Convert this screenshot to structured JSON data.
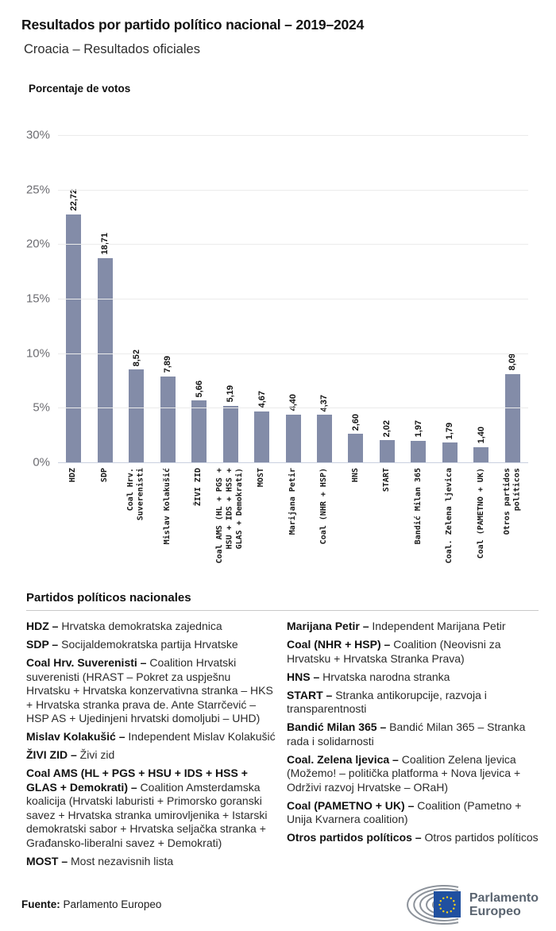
{
  "header": {
    "title": "Resultados por partido político nacional – 2019–2024",
    "subtitle": "Croacia – Resultados oficiales"
  },
  "chart": {
    "heading": "Porcentaje de votos"
  },
  "chart_data": {
    "type": "bar",
    "title": "Porcentaje de votos",
    "xlabel": "",
    "ylabel": "Porcentaje de votos",
    "categories": [
      "HDZ",
      "SDP",
      "Coal Hrv.\nSuverenisti",
      "Mislav Kolakušić",
      "ŽIVI ZID",
      "Coal AMS (HL + PGS +\nHSU + IDS + HSS +\nGLAS + Demokrati)",
      "MOST",
      "Marijana Petir",
      "Coal (NHR + HSP)",
      "HNS",
      "START",
      "Bandić Milan 365",
      "Coal. Zelena ljevica",
      "Coal (PAMETNO + UK)",
      "Otros partidos\npolíticos"
    ],
    "values": [
      22.72,
      18.71,
      8.52,
      7.89,
      5.66,
      5.19,
      4.67,
      4.4,
      4.37,
      2.6,
      2.02,
      1.97,
      1.79,
      1.4,
      8.09
    ],
    "value_labels": [
      "22,72",
      "18,71",
      "8,52",
      "7,89",
      "5,66",
      "5,19",
      "4,67",
      "4,40",
      "4,37",
      "2,60",
      "2,02",
      "1,97",
      "1,79",
      "1,40",
      "8,09"
    ],
    "ylim": [
      0,
      30
    ],
    "yticks": [
      "0%",
      "5%",
      "10%",
      "15%",
      "20%",
      "25%",
      "30%"
    ],
    "grid": true,
    "legend_position": "none",
    "bar_color": "#838CA8",
    "gridline_color": "#ebebeb",
    "axis_line_color": "#c9d0df"
  },
  "legend": {
    "heading": "Partidos políticos nacionales",
    "left": [
      {
        "name": "HDZ –",
        "desc": "Hrvatska demokratska zajednica"
      },
      {
        "name": "SDP –",
        "desc": "Socijaldemokratska partija Hrvatske"
      },
      {
        "name": "Coal Hrv. Suverenisti –",
        "desc": "Coalition Hrvatski suverenisti (HRAST – Pokret za uspješnu Hrvatsku + Hrvatska konzervativna stranka – HKS + Hrvatska stranka prava de. Ante Starrčević – HSP AS + Ujedinjeni hrvatski domoljubi – UHD)"
      },
      {
        "name": "Mislav Kolakušić –",
        "desc": "Independent Mislav Kolakušić"
      },
      {
        "name": "ŽIVI ZID –",
        "desc": "Živi zid"
      },
      {
        "name": "Coal AMS (HL + PGS + HSU + IDS + HSS + GLAS + Demokrati) –",
        "desc": "Coalition Amsterdamska koalicija (Hrvatski laburisti + Primorsko goranski savez + Hrvatska stranka umirovljenika + Istarski demokratski sabor + Hrvatska seljačka stranka + Građansko-liberalni savez + Demokrati)"
      },
      {
        "name": "MOST –",
        "desc": "Most nezavisnih lista"
      }
    ],
    "right": [
      {
        "name": "Marijana Petir –",
        "desc": "Independent Marijana Petir"
      },
      {
        "name": "Coal (NHR + HSP) –",
        "desc": "Coalition (Neovisni za Hrvatsku + Hrvatska Stranka Prava)"
      },
      {
        "name": "HNS –",
        "desc": "Hrvatska narodna stranka"
      },
      {
        "name": "START –",
        "desc": "Stranka antikorupcije, razvoja i transparentnosti"
      },
      {
        "name": "Bandić Milan 365 –",
        "desc": "Bandić Milan 365 – Stranka rada i solidarnosti"
      },
      {
        "name": "Coal. Zelena ljevica –",
        "desc": "Coalition Zelena ljevica (Možemo! – politička platforma + Nova ljevica + Održivi razvoj Hrvatske – ORaH)"
      },
      {
        "name": "Coal (PAMETNO + UK) –",
        "desc": "Coalition (Pametno + Unija Kvarnera coalition)"
      },
      {
        "name": "Otros partidos políticos –",
        "desc": "Otros partidos políticos"
      }
    ]
  },
  "footer": {
    "source_label": "Fuente:",
    "source_value": "Parlamento Europeo",
    "logo_text": "Parlamento\nEuropeo"
  },
  "colors": {
    "bar": "#838CA8",
    "eu_flag_blue": "#2050a0",
    "star_yellow": "#ffd617",
    "hemicycle_gray": "#8d939b",
    "logo_text_gray": "#5a6470"
  }
}
